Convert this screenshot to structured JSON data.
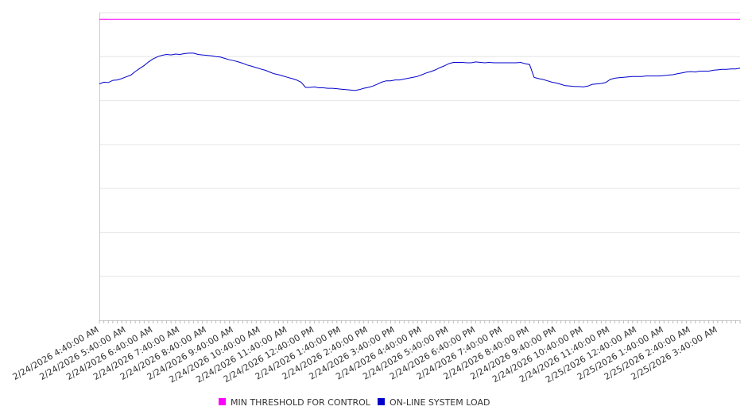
{
  "chart_data": {
    "type": "line",
    "title": "",
    "xlabel": "",
    "ylabel": "",
    "grid": true,
    "legend_position": "bottom-center",
    "y_tick_labels_visible": false,
    "x_tick_labels": [
      "2/24/2026 4:40:00 AM",
      "2/24/2026 5:40:00 AM",
      "2/24/2026 6:40:00 AM",
      "2/24/2026 7:40:00 AM",
      "2/24/2026 8:40:00 AM",
      "2/24/2026 9:40:00 AM",
      "2/24/2026 10:40:00 AM",
      "2/24/2026 11:40:00 AM",
      "2/24/2026 12:40:00 PM",
      "2/24/2026 1:40:00 PM",
      "2/24/2026 2:40:00 PM",
      "2/24/2026 3:40:00 PM",
      "2/24/2026 4:40:00 PM",
      "2/24/2026 5:40:00 PM",
      "2/24/2026 6:40:00 PM",
      "2/24/2026 7:40:00 PM",
      "2/24/2026 8:40:00 PM",
      "2/24/2026 9:40:00 PM",
      "2/24/2026 10:40:00 PM",
      "2/24/2026 11:40:00 PM",
      "2/25/2026 12:40:00 AM",
      "2/25/2026 1:40:00 AM",
      "2/25/2026 2:40:00 AM",
      "2/25/2026 3:40:00 AM"
    ],
    "x_range_hours": [
      0,
      23.83
    ],
    "y_range": [
      0,
      7
    ],
    "series": [
      {
        "name": "MIN THRESHOLD FOR CONTROL",
        "color": "#ff00ff",
        "points": [
          [
            0,
            6.85
          ],
          [
            23.83,
            6.85
          ]
        ]
      },
      {
        "name": "ON-LINE SYSTEM LOAD",
        "color": "#0000cc",
        "points": [
          [
            0,
            5.38
          ],
          [
            0.17,
            5.42
          ],
          [
            0.33,
            5.41
          ],
          [
            0.5,
            5.46
          ],
          [
            0.67,
            5.47
          ],
          [
            0.83,
            5.5
          ],
          [
            1.0,
            5.54
          ],
          [
            1.17,
            5.58
          ],
          [
            1.33,
            5.66
          ],
          [
            1.5,
            5.73
          ],
          [
            1.67,
            5.8
          ],
          [
            1.83,
            5.88
          ],
          [
            2.0,
            5.95
          ],
          [
            2.17,
            6.0
          ],
          [
            2.33,
            6.03
          ],
          [
            2.5,
            6.05
          ],
          [
            2.67,
            6.04
          ],
          [
            2.83,
            6.06
          ],
          [
            3.0,
            6.05
          ],
          [
            3.17,
            6.07
          ],
          [
            3.33,
            6.08
          ],
          [
            3.5,
            6.08
          ],
          [
            3.67,
            6.05
          ],
          [
            3.83,
            6.04
          ],
          [
            4.0,
            6.03
          ],
          [
            4.17,
            6.02
          ],
          [
            4.33,
            6.0
          ],
          [
            4.5,
            5.99
          ],
          [
            4.67,
            5.96
          ],
          [
            4.83,
            5.93
          ],
          [
            5.0,
            5.91
          ],
          [
            5.17,
            5.88
          ],
          [
            5.33,
            5.85
          ],
          [
            5.5,
            5.81
          ],
          [
            5.67,
            5.78
          ],
          [
            5.83,
            5.75
          ],
          [
            6.0,
            5.72
          ],
          [
            6.17,
            5.69
          ],
          [
            6.33,
            5.65
          ],
          [
            6.5,
            5.61
          ],
          [
            6.67,
            5.59
          ],
          [
            6.83,
            5.56
          ],
          [
            7.0,
            5.53
          ],
          [
            7.17,
            5.5
          ],
          [
            7.33,
            5.47
          ],
          [
            7.5,
            5.42
          ],
          [
            7.67,
            5.3
          ],
          [
            7.83,
            5.3
          ],
          [
            8.0,
            5.31
          ],
          [
            8.17,
            5.29
          ],
          [
            8.33,
            5.29
          ],
          [
            8.5,
            5.28
          ],
          [
            8.67,
            5.28
          ],
          [
            8.83,
            5.27
          ],
          [
            9.0,
            5.26
          ],
          [
            9.17,
            5.25
          ],
          [
            9.33,
            5.24
          ],
          [
            9.5,
            5.23
          ],
          [
            9.67,
            5.25
          ],
          [
            9.83,
            5.28
          ],
          [
            10.0,
            5.3
          ],
          [
            10.17,
            5.33
          ],
          [
            10.33,
            5.37
          ],
          [
            10.5,
            5.42
          ],
          [
            10.67,
            5.45
          ],
          [
            10.83,
            5.45
          ],
          [
            11.0,
            5.47
          ],
          [
            11.17,
            5.47
          ],
          [
            11.33,
            5.49
          ],
          [
            11.5,
            5.51
          ],
          [
            11.67,
            5.53
          ],
          [
            11.83,
            5.55
          ],
          [
            12.0,
            5.59
          ],
          [
            12.17,
            5.63
          ],
          [
            12.33,
            5.66
          ],
          [
            12.5,
            5.7
          ],
          [
            12.67,
            5.75
          ],
          [
            12.83,
            5.79
          ],
          [
            13.0,
            5.84
          ],
          [
            13.17,
            5.87
          ],
          [
            13.33,
            5.87
          ],
          [
            13.5,
            5.87
          ],
          [
            13.67,
            5.86
          ],
          [
            13.83,
            5.86
          ],
          [
            14.0,
            5.88
          ],
          [
            14.17,
            5.87
          ],
          [
            14.33,
            5.86
          ],
          [
            14.5,
            5.87
          ],
          [
            14.67,
            5.86
          ],
          [
            14.83,
            5.86
          ],
          [
            15.0,
            5.86
          ],
          [
            15.17,
            5.86
          ],
          [
            15.33,
            5.86
          ],
          [
            15.5,
            5.86
          ],
          [
            15.67,
            5.87
          ],
          [
            15.83,
            5.84
          ],
          [
            16.0,
            5.82
          ],
          [
            16.17,
            5.53
          ],
          [
            16.33,
            5.5
          ],
          [
            16.5,
            5.48
          ],
          [
            16.67,
            5.45
          ],
          [
            16.83,
            5.42
          ],
          [
            17.0,
            5.4
          ],
          [
            17.17,
            5.37
          ],
          [
            17.33,
            5.34
          ],
          [
            17.5,
            5.33
          ],
          [
            17.67,
            5.32
          ],
          [
            17.83,
            5.32
          ],
          [
            18.0,
            5.31
          ],
          [
            18.17,
            5.33
          ],
          [
            18.33,
            5.37
          ],
          [
            18.5,
            5.38
          ],
          [
            18.67,
            5.39
          ],
          [
            18.83,
            5.41
          ],
          [
            19.0,
            5.48
          ],
          [
            19.17,
            5.51
          ],
          [
            19.33,
            5.52
          ],
          [
            19.5,
            5.53
          ],
          [
            19.67,
            5.54
          ],
          [
            19.83,
            5.55
          ],
          [
            20.0,
            5.55
          ],
          [
            20.17,
            5.55
          ],
          [
            20.33,
            5.56
          ],
          [
            20.5,
            5.56
          ],
          [
            20.67,
            5.56
          ],
          [
            20.83,
            5.56
          ],
          [
            21.0,
            5.57
          ],
          [
            21.17,
            5.58
          ],
          [
            21.33,
            5.59
          ],
          [
            21.5,
            5.61
          ],
          [
            21.67,
            5.63
          ],
          [
            21.83,
            5.65
          ],
          [
            22.0,
            5.66
          ],
          [
            22.17,
            5.65
          ],
          [
            22.33,
            5.67
          ],
          [
            22.5,
            5.67
          ],
          [
            22.67,
            5.67
          ],
          [
            22.83,
            5.69
          ],
          [
            23.0,
            5.7
          ],
          [
            23.17,
            5.71
          ],
          [
            23.33,
            5.71
          ],
          [
            23.5,
            5.72
          ],
          [
            23.67,
            5.72
          ],
          [
            23.83,
            5.74
          ]
        ]
      }
    ]
  }
}
